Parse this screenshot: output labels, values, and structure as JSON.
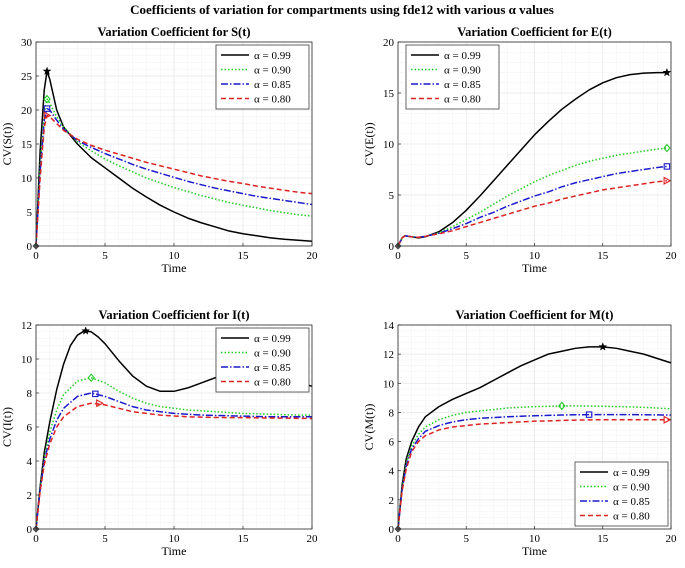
{
  "figure_title": "Coefficients of variation for compartments using fde12 with various α values",
  "legend_labels": [
    "α = 0.99",
    "α = 0.90",
    "α = 0.85",
    "α = 0.80"
  ],
  "series_styles": [
    {
      "name": "α = 0.99",
      "color": "#000000",
      "dash": "",
      "marker": "star"
    },
    {
      "name": "α = 0.90",
      "color": "#22cc22",
      "dash": "1.5,2",
      "marker": "diamond"
    },
    {
      "name": "α = 0.85",
      "color": "#1a1acc",
      "dash": "7,2,1.5,2",
      "marker": "square"
    },
    {
      "name": "α = 0.80",
      "color": "#dd2222",
      "dash": "5,3",
      "marker": "triangle-right"
    }
  ],
  "chart_data": [
    {
      "type": "line",
      "id": "S",
      "title": "Variation Coefficient for S(t)",
      "xlabel": "Time",
      "ylabel": "CV(S(t))",
      "xlim": [
        0,
        20
      ],
      "ylim": [
        0,
        30
      ],
      "xticks": [
        0,
        5,
        10,
        15,
        20
      ],
      "yticks": [
        0,
        5,
        10,
        15,
        20,
        25,
        30
      ],
      "legend_position": "top-right",
      "series": [
        {
          "name": "α = 0.99",
          "x": [
            0,
            0.3,
            0.6,
            0.8,
            1,
            1.5,
            2,
            3,
            4,
            5,
            6,
            7,
            8,
            9,
            10,
            11,
            12,
            13,
            14,
            15,
            16,
            17,
            18,
            19,
            20
          ],
          "y": [
            0,
            14,
            23,
            25.7,
            24.5,
            20,
            17.5,
            15,
            13,
            11.5,
            10,
            8.5,
            7.2,
            6,
            5,
            4.1,
            3.4,
            2.8,
            2.2,
            1.8,
            1.5,
            1.2,
            1,
            0.85,
            0.7
          ],
          "marker_point": [
            0.8,
            25.7
          ]
        },
        {
          "name": "α = 0.90",
          "x": [
            0,
            0.3,
            0.6,
            0.8,
            1,
            1.5,
            2,
            3,
            4,
            5,
            6,
            7,
            8,
            9,
            10,
            11,
            12,
            13,
            14,
            15,
            16,
            17,
            18,
            19,
            20
          ],
          "y": [
            0,
            12,
            19.5,
            21.6,
            21,
            19,
            17.5,
            15.3,
            14,
            12.8,
            11.8,
            10.9,
            10,
            9.3,
            8.6,
            8,
            7.4,
            6.9,
            6.4,
            6,
            5.6,
            5.2,
            4.9,
            4.6,
            4.4
          ],
          "marker_point": [
            0.8,
            21.6
          ]
        },
        {
          "name": "α = 0.85",
          "x": [
            0,
            0.3,
            0.6,
            0.8,
            1,
            1.5,
            2,
            3,
            4,
            5,
            6,
            7,
            8,
            9,
            10,
            11,
            12,
            13,
            14,
            15,
            16,
            17,
            18,
            19,
            20
          ],
          "y": [
            0,
            11,
            18.5,
            20.2,
            20,
            18.5,
            17.2,
            15.5,
            14.5,
            13.6,
            12.8,
            12,
            11.3,
            10.7,
            10.1,
            9.5,
            9,
            8.5,
            8.1,
            7.7,
            7.3,
            7,
            6.7,
            6.4,
            6.1
          ],
          "marker_point": [
            0.8,
            20.2
          ]
        },
        {
          "name": "α = 0.80",
          "x": [
            0,
            0.3,
            0.6,
            0.8,
            1,
            1.5,
            2,
            3,
            4,
            5,
            6,
            7,
            8,
            9,
            10,
            11,
            12,
            13,
            14,
            15,
            16,
            17,
            18,
            19,
            20
          ],
          "y": [
            0,
            10,
            17.5,
            19.2,
            19,
            18,
            17,
            15.7,
            14.8,
            14.1,
            13.5,
            12.9,
            12.3,
            11.8,
            11.3,
            10.8,
            10.3,
            9.9,
            9.5,
            9.2,
            8.8,
            8.5,
            8.2,
            7.9,
            7.7
          ],
          "marker_point": [
            0.8,
            19.2
          ]
        }
      ]
    },
    {
      "type": "line",
      "id": "E",
      "title": "Variation Coefficient for E(t)",
      "xlabel": "Time",
      "ylabel": "CV(E(t))",
      "xlim": [
        0,
        20
      ],
      "ylim": [
        0,
        20
      ],
      "xticks": [
        0,
        5,
        10,
        15,
        20
      ],
      "yticks": [
        0,
        5,
        10,
        15,
        20
      ],
      "legend_position": "top-left",
      "series": [
        {
          "name": "α = 0.99",
          "x": [
            0,
            0.3,
            0.5,
            1,
            1.5,
            2,
            3,
            4,
            5,
            6,
            7,
            8,
            9,
            10,
            11,
            12,
            13,
            14,
            15,
            16,
            17,
            18,
            19,
            19.7
          ],
          "y": [
            0,
            0.8,
            1,
            0.9,
            0.8,
            0.9,
            1.4,
            2.3,
            3.5,
            4.9,
            6.4,
            7.9,
            9.4,
            10.9,
            12.2,
            13.4,
            14.4,
            15.3,
            16,
            16.5,
            16.8,
            16.95,
            17,
            17
          ],
          "marker_point": [
            19.7,
            17
          ]
        },
        {
          "name": "α = 0.90",
          "x": [
            0,
            0.3,
            0.5,
            1,
            1.5,
            2,
            3,
            4,
            5,
            6,
            7,
            8,
            9,
            10,
            11,
            12,
            13,
            14,
            15,
            16,
            17,
            18,
            19,
            19.7
          ],
          "y": [
            0,
            0.8,
            1,
            0.9,
            0.85,
            0.95,
            1.3,
            1.9,
            2.6,
            3.3,
            4.1,
            4.9,
            5.6,
            6.3,
            6.9,
            7.4,
            7.9,
            8.3,
            8.6,
            8.9,
            9.1,
            9.3,
            9.5,
            9.6
          ],
          "marker_point": [
            19.7,
            9.6
          ]
        },
        {
          "name": "α = 0.85",
          "x": [
            0,
            0.3,
            0.5,
            1,
            1.5,
            2,
            3,
            4,
            5,
            6,
            7,
            8,
            9,
            10,
            11,
            12,
            13,
            14,
            15,
            16,
            17,
            18,
            19,
            19.7
          ],
          "y": [
            0,
            0.8,
            1,
            0.9,
            0.85,
            0.95,
            1.25,
            1.7,
            2.2,
            2.8,
            3.3,
            3.9,
            4.4,
            4.9,
            5.3,
            5.8,
            6.2,
            6.5,
            6.8,
            7.1,
            7.3,
            7.5,
            7.7,
            7.8
          ],
          "marker_point": [
            19.7,
            7.8
          ]
        },
        {
          "name": "α = 0.80",
          "x": [
            0,
            0.3,
            0.5,
            1,
            1.5,
            2,
            3,
            4,
            5,
            6,
            7,
            8,
            9,
            10,
            11,
            12,
            13,
            14,
            15,
            16,
            17,
            18,
            19,
            19.7
          ],
          "y": [
            0,
            0.8,
            1,
            0.9,
            0.85,
            0.95,
            1.2,
            1.5,
            1.9,
            2.3,
            2.7,
            3.1,
            3.5,
            3.9,
            4.2,
            4.6,
            4.9,
            5.2,
            5.5,
            5.7,
            5.9,
            6.1,
            6.3,
            6.4
          ],
          "marker_point": [
            19.7,
            6.4
          ]
        }
      ]
    },
    {
      "type": "line",
      "id": "I",
      "title": "Variation Coefficient for I(t)",
      "xlabel": "Time",
      "ylabel": "CV(I(t))",
      "xlim": [
        0,
        20
      ],
      "ylim": [
        0,
        12
      ],
      "xticks": [
        0,
        5,
        10,
        15,
        20
      ],
      "yticks": [
        0,
        2,
        4,
        6,
        8,
        10,
        12
      ],
      "legend_position": "top-right",
      "series": [
        {
          "name": "α = 0.99",
          "x": [
            0,
            0.3,
            0.6,
            1,
            1.5,
            2,
            2.5,
            3,
            3.5,
            4,
            4.5,
            5,
            6,
            7,
            8,
            9,
            10,
            11,
            12,
            13,
            14,
            15,
            16,
            17,
            18,
            19,
            20
          ],
          "y": [
            0,
            2.5,
            4.5,
            6.3,
            8.2,
            9.7,
            10.8,
            11.4,
            11.65,
            11.6,
            11.3,
            10.9,
            9.9,
            9,
            8.4,
            8.1,
            8.1,
            8.3,
            8.6,
            8.9,
            9.1,
            9.2,
            9.15,
            9,
            8.8,
            8.6,
            8.4
          ],
          "marker_point": [
            3.6,
            11.65
          ]
        },
        {
          "name": "α = 0.90",
          "x": [
            0,
            0.3,
            0.6,
            1,
            1.5,
            2,
            3,
            4,
            5,
            6,
            7,
            8,
            9,
            10,
            11,
            12,
            13,
            14,
            15,
            16,
            17,
            18,
            19,
            20
          ],
          "y": [
            0,
            2.4,
            4.2,
            5.7,
            7,
            7.9,
            8.7,
            8.9,
            8.6,
            8.1,
            7.7,
            7.4,
            7.2,
            7.1,
            7,
            6.95,
            6.9,
            6.85,
            6.8,
            6.78,
            6.75,
            6.72,
            6.7,
            6.7
          ],
          "marker_point": [
            4,
            8.9
          ]
        },
        {
          "name": "α = 0.85",
          "x": [
            0,
            0.3,
            0.6,
            1,
            1.5,
            2,
            3,
            4,
            5,
            6,
            7,
            8,
            9,
            10,
            11,
            12,
            13,
            14,
            15,
            16,
            17,
            18,
            19,
            20
          ],
          "y": [
            0,
            2.3,
            4,
            5.3,
            6.4,
            7.1,
            7.8,
            8,
            7.8,
            7.5,
            7.2,
            7,
            6.9,
            6.8,
            6.75,
            6.7,
            6.68,
            6.66,
            6.64,
            6.62,
            6.6,
            6.6,
            6.6,
            6.6
          ],
          "marker_point": [
            4.3,
            7.95
          ]
        },
        {
          "name": "α = 0.80",
          "x": [
            0,
            0.3,
            0.6,
            1,
            1.5,
            2,
            3,
            4,
            5,
            6,
            7,
            8,
            9,
            10,
            11,
            12,
            13,
            14,
            15,
            16,
            17,
            18,
            19,
            20
          ],
          "y": [
            0,
            2.2,
            3.8,
            5,
            6,
            6.6,
            7.2,
            7.4,
            7.3,
            7.1,
            6.9,
            6.8,
            6.7,
            6.65,
            6.6,
            6.58,
            6.56,
            6.55,
            6.55,
            6.54,
            6.53,
            6.52,
            6.51,
            6.5
          ],
          "marker_point": [
            4.6,
            7.4
          ]
        }
      ]
    },
    {
      "type": "line",
      "id": "M",
      "title": "Variation Coefficient for M(t)",
      "xlabel": "Time",
      "ylabel": "CV(M(t))",
      "xlim": [
        0,
        20
      ],
      "ylim": [
        0,
        14
      ],
      "xticks": [
        0,
        5,
        10,
        15,
        20
      ],
      "yticks": [
        0,
        2,
        4,
        6,
        8,
        10,
        12,
        14
      ],
      "legend_position": "bottom-right",
      "series": [
        {
          "name": "α = 0.99",
          "x": [
            0,
            0.3,
            0.6,
            1,
            1.5,
            2,
            3,
            4,
            5,
            6,
            7,
            8,
            9,
            10,
            11,
            12,
            13,
            14,
            15,
            16,
            17,
            18,
            19,
            20
          ],
          "y": [
            0,
            3,
            4.8,
            6,
            7,
            7.7,
            8.4,
            8.9,
            9.3,
            9.7,
            10.2,
            10.7,
            11.2,
            11.6,
            12,
            12.2,
            12.4,
            12.5,
            12.5,
            12.4,
            12.2,
            12,
            11.7,
            11.4
          ],
          "marker_point": [
            15,
            12.5
          ]
        },
        {
          "name": "α = 0.90",
          "x": [
            0,
            0.3,
            0.6,
            1,
            1.5,
            2,
            3,
            4,
            5,
            6,
            7,
            8,
            9,
            10,
            11,
            12,
            13,
            14,
            15,
            16,
            17,
            18,
            19,
            20
          ],
          "y": [
            0,
            2.8,
            4.5,
            5.7,
            6.5,
            7,
            7.5,
            7.8,
            8,
            8.1,
            8.2,
            8.3,
            8.35,
            8.4,
            8.42,
            8.45,
            8.45,
            8.44,
            8.42,
            8.4,
            8.38,
            8.35,
            8.3,
            8.25
          ],
          "marker_point": [
            12,
            8.45
          ]
        },
        {
          "name": "α = 0.85",
          "x": [
            0,
            0.3,
            0.6,
            1,
            1.5,
            2,
            3,
            4,
            5,
            6,
            7,
            8,
            9,
            10,
            11,
            12,
            13,
            14,
            15,
            16,
            17,
            18,
            19,
            20
          ],
          "y": [
            0,
            2.7,
            4.3,
            5.5,
            6.2,
            6.7,
            7.1,
            7.35,
            7.5,
            7.6,
            7.65,
            7.7,
            7.74,
            7.77,
            7.8,
            7.82,
            7.84,
            7.85,
            7.85,
            7.85,
            7.85,
            7.84,
            7.83,
            7.82
          ],
          "marker_point": [
            14,
            7.85
          ]
        },
        {
          "name": "α = 0.80",
          "x": [
            0,
            0.3,
            0.6,
            1,
            1.5,
            2,
            3,
            4,
            5,
            6,
            7,
            8,
            9,
            10,
            11,
            12,
            13,
            14,
            15,
            16,
            17,
            18,
            19,
            20
          ],
          "y": [
            0,
            2.6,
            4.1,
            5.3,
            6,
            6.4,
            6.8,
            7,
            7.1,
            7.2,
            7.25,
            7.3,
            7.35,
            7.4,
            7.42,
            7.45,
            7.47,
            7.49,
            7.5,
            7.5,
            7.5,
            7.5,
            7.5,
            7.5
          ],
          "marker_point": [
            19.7,
            7.5
          ]
        }
      ]
    }
  ]
}
